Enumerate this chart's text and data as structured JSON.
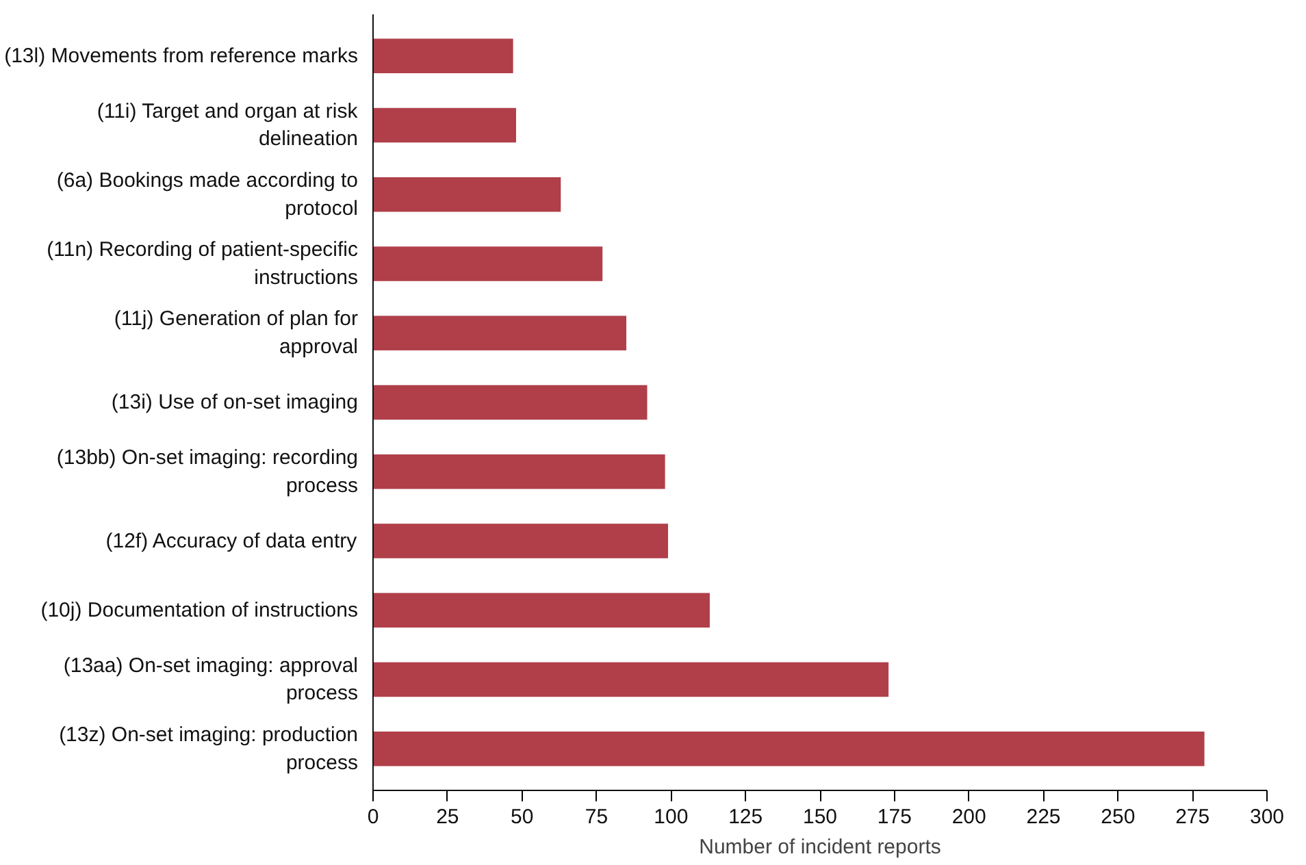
{
  "chart_data": {
    "type": "bar",
    "orientation": "horizontal",
    "xlabel": "Number of incident reports",
    "categories": [
      "(13l) Movements from reference marks",
      "(11i) Target and organ at risk delineation",
      "(6a) Bookings made according to protocol",
      "(11n) Recording of patient-specific instructions",
      "(11j) Generation of plan for approval",
      "(13i) Use of on-set imaging",
      "(13bb) On-set imaging: recording process",
      "(12f) Accuracy of data entry",
      "(10j) Documentation of instructions",
      "(13aa) On-set imaging: approval process",
      "(13z) On-set imaging: production process"
    ],
    "values": [
      47,
      48,
      63,
      77,
      85,
      92,
      98,
      99,
      113,
      173,
      279
    ],
    "color": "#b03f4a",
    "xlim": [
      0,
      300
    ],
    "xticks": [
      0,
      25,
      50,
      75,
      100,
      125,
      150,
      175,
      200,
      225,
      250,
      275,
      300
    ],
    "grid": false
  }
}
